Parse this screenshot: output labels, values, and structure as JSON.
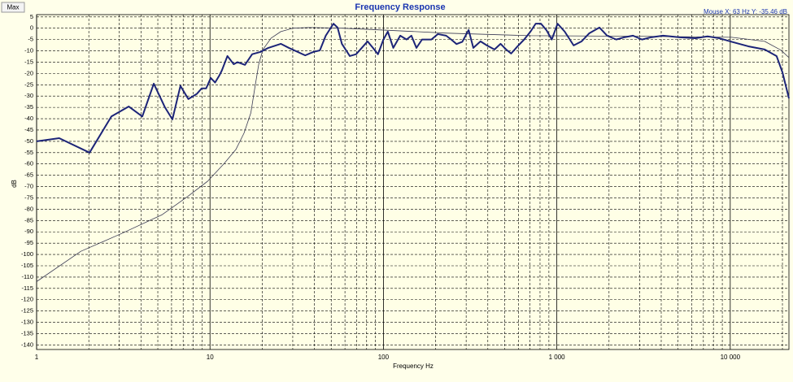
{
  "chart_data": {
    "type": "line",
    "title": "Frequency Response",
    "button": "Max",
    "annotation": "Mouse X: 63 Hz   Y: -35.46 dB",
    "x_label": "Frequency Hz",
    "y_label": "dB",
    "xscale": "log",
    "grid": true,
    "xlim": [
      1,
      21800
    ],
    "ylim": [
      -142,
      6
    ],
    "xticks": [
      1,
      10,
      100,
      {
        "value": 1000,
        "label": "1 000"
      },
      {
        "value": 10000,
        "label": "10 000"
      }
    ],
    "yticks": [
      5,
      0,
      -5,
      -10,
      -15,
      -20,
      -25,
      -30,
      -35,
      -40,
      -45,
      -50,
      -55,
      -60,
      -65,
      -70,
      -75,
      -80,
      -85,
      -90,
      -95,
      -100,
      -105,
      -110,
      -115,
      -120,
      -125,
      -130,
      -135,
      -140
    ],
    "series": [
      {
        "color": "#1c2478",
        "width": 2,
        "x": [
          1,
          1.35,
          2.02,
          2.7,
          3.4,
          4.07,
          4.74,
          5.5,
          6.07,
          6.75,
          7.5,
          8.4,
          8.95,
          9.5,
          10.1,
          10.7,
          11.3,
          11.7,
          12.6,
          13.7,
          14.4,
          15.9,
          17.5,
          19.5,
          21.7,
          25.6,
          28.5,
          35.4,
          39.4,
          43,
          46.5,
          51.5,
          54.4,
          57.6,
          64,
          69.6,
          75,
          81,
          87,
          93,
          100,
          106,
          114,
          125,
          136,
          145,
          155,
          167,
          189,
          206,
          230,
          246,
          264,
          285,
          310,
          330,
          363,
          395,
          437,
          474,
          510,
          545,
          594,
          648,
          705,
          755,
          810,
          870,
          935,
          1010,
          1110,
          1250,
          1390,
          1540,
          1760,
          1950,
          2200,
          2450,
          2750,
          3100,
          3500,
          4100,
          5100,
          6300,
          7400,
          8600,
          10200,
          12700,
          15800,
          18500,
          20000,
          21800
        ],
        "values": [
          -50,
          -48.6,
          -55,
          -39,
          -34.6,
          -39,
          -24.5,
          -35,
          -40.3,
          -25.5,
          -31.3,
          -29,
          -26.6,
          -26.6,
          -22,
          -24,
          -21,
          -18.7,
          -12.3,
          -15.9,
          -15,
          -16.2,
          -11.5,
          -10.5,
          -8.7,
          -6.9,
          -8.7,
          -12,
          -10.5,
          -9.8,
          -3.3,
          2,
          0.3,
          -6.9,
          -12.3,
          -11.5,
          -8.7,
          -5.8,
          -8.7,
          -11.5,
          -5,
          -1.5,
          -8.7,
          -3.3,
          -5,
          -3.3,
          -8.7,
          -5,
          -5,
          -2.6,
          -3.3,
          -5,
          -7,
          -6,
          -0.8,
          -8.7,
          -5.8,
          -7.6,
          -9.4,
          -6.9,
          -9.4,
          -11.2,
          -8,
          -5,
          -1.5,
          2,
          2,
          -0.8,
          -5,
          2,
          -1.5,
          -7.6,
          -5.8,
          -2.2,
          0.3,
          -3.3,
          -5,
          -4,
          -3.3,
          -5,
          -4,
          -3.3,
          -4,
          -4.4,
          -3.6,
          -4.4,
          -6,
          -8,
          -9.4,
          -12.3,
          -19.5,
          -31
        ]
      },
      {
        "color": "#3a3a55",
        "width": 0.8,
        "x": [
          1,
          1.8,
          3.1,
          5.3,
          7.4,
          9.7,
          12,
          14.1,
          15.7,
          17.2,
          18.1,
          19.1,
          20.2,
          22.5,
          25.6,
          30,
          37,
          57.6,
          99,
          235,
          695,
          3500,
          10200,
          15800,
          19600,
          21800
        ],
        "values": [
          -112,
          -98.6,
          -90.7,
          -82.4,
          -74.5,
          -67.6,
          -60,
          -53.6,
          -46.4,
          -37.4,
          -26.7,
          -15.9,
          -9.4,
          -4.4,
          -1.5,
          0,
          0.3,
          0,
          -0.8,
          -2.2,
          -3.3,
          -3.6,
          -4,
          -5.8,
          -9.7,
          -13
        ]
      }
    ]
  }
}
